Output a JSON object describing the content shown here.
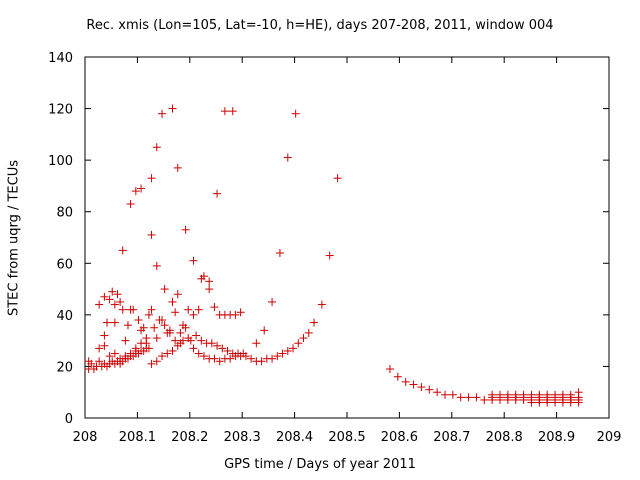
{
  "chart_data": {
    "type": "scatter",
    "title": "Rec. xmis (Lon=105, Lat=-10, h=HE), days 207-208, 2011, window 004",
    "xlabel": "GPS time / Days of year 2011",
    "ylabel": "STEC from uqrg / TECUs",
    "xlim": [
      208,
      209
    ],
    "ylim": [
      0,
      140
    ],
    "xticks": [
      "208",
      "208.1",
      "208.2",
      "208.3",
      "208.4",
      "208.5",
      "208.6",
      "208.7",
      "208.8",
      "208.9",
      "209"
    ],
    "yticks": [
      "0",
      "20",
      "40",
      "60",
      "80",
      "100",
      "120",
      "140"
    ],
    "marker": "+",
    "color": "#cc0000",
    "grid": false,
    "legend": "none",
    "points": [
      [
        208.007,
        19
      ],
      [
        208.007,
        22
      ],
      [
        208.012,
        21
      ],
      [
        208.017,
        19
      ],
      [
        208.022,
        20
      ],
      [
        208.027,
        22
      ],
      [
        208.032,
        20
      ],
      [
        208.037,
        21
      ],
      [
        208.042,
        20
      ],
      [
        208.047,
        21
      ],
      [
        208.052,
        22
      ],
      [
        208.057,
        21
      ],
      [
        208.062,
        22
      ],
      [
        208.067,
        21
      ],
      [
        208.072,
        22
      ],
      [
        208.077,
        23
      ],
      [
        208.082,
        23
      ],
      [
        208.087,
        24
      ],
      [
        208.092,
        24
      ],
      [
        208.097,
        25
      ],
      [
        208.102,
        25
      ],
      [
        208.107,
        26
      ],
      [
        208.112,
        26
      ],
      [
        208.117,
        27
      ],
      [
        208.122,
        27
      ],
      [
        208.027,
        27
      ],
      [
        208.037,
        28
      ],
      [
        208.047,
        24
      ],
      [
        208.057,
        25
      ],
      [
        208.067,
        23
      ],
      [
        208.077,
        24
      ],
      [
        208.087,
        25
      ],
      [
        208.097,
        27
      ],
      [
        208.107,
        29
      ],
      [
        208.117,
        31
      ],
      [
        208.127,
        21
      ],
      [
        208.137,
        22
      ],
      [
        208.147,
        24
      ],
      [
        208.157,
        25
      ],
      [
        208.167,
        26
      ],
      [
        208.177,
        28
      ],
      [
        208.187,
        30
      ],
      [
        208.197,
        31
      ],
      [
        208.207,
        27
      ],
      [
        208.217,
        25
      ],
      [
        208.227,
        24
      ],
      [
        208.237,
        23
      ],
      [
        208.247,
        23
      ],
      [
        208.257,
        22
      ],
      [
        208.267,
        23
      ],
      [
        208.277,
        23
      ],
      [
        208.287,
        24
      ],
      [
        208.297,
        24
      ],
      [
        208.307,
        24
      ],
      [
        208.317,
        23
      ],
      [
        208.327,
        22
      ],
      [
        208.337,
        22
      ],
      [
        208.347,
        23
      ],
      [
        208.357,
        23
      ],
      [
        208.367,
        24
      ],
      [
        208.377,
        25
      ],
      [
        208.387,
        26
      ],
      [
        208.397,
        27
      ],
      [
        208.407,
        29
      ],
      [
        208.417,
        31
      ],
      [
        208.427,
        33
      ],
      [
        208.437,
        37
      ],
      [
        208.452,
        44
      ],
      [
        208.467,
        63
      ],
      [
        208.482,
        93
      ],
      [
        208.027,
        44
      ],
      [
        208.037,
        32
      ],
      [
        208.042,
        37
      ],
      [
        208.047,
        46
      ],
      [
        208.057,
        37
      ],
      [
        208.062,
        48
      ],
      [
        208.072,
        42
      ],
      [
        208.082,
        36
      ],
      [
        208.092,
        42
      ],
      [
        208.102,
        38
      ],
      [
        208.112,
        35
      ],
      [
        208.122,
        40
      ],
      [
        208.132,
        35
      ],
      [
        208.142,
        38
      ],
      [
        208.152,
        36
      ],
      [
        208.162,
        33
      ],
      [
        208.172,
        41
      ],
      [
        208.182,
        33
      ],
      [
        208.192,
        35
      ],
      [
        208.202,
        30
      ],
      [
        208.212,
        32
      ],
      [
        208.222,
        30
      ],
      [
        208.232,
        29
      ],
      [
        208.242,
        29
      ],
      [
        208.252,
        28
      ],
      [
        208.262,
        27
      ],
      [
        208.272,
        26
      ],
      [
        208.282,
        25
      ],
      [
        208.292,
        25
      ],
      [
        208.302,
        25
      ],
      [
        208.057,
        44
      ],
      [
        208.067,
        45
      ],
      [
        208.077,
        30
      ],
      [
        208.087,
        42
      ],
      [
        208.097,
        26
      ],
      [
        208.107,
        34
      ],
      [
        208.117,
        29
      ],
      [
        208.127,
        42
      ],
      [
        208.137,
        31
      ],
      [
        208.147,
        38
      ],
      [
        208.157,
        33
      ],
      [
        208.167,
        45
      ],
      [
        208.177,
        48
      ],
      [
        208.187,
        36
      ],
      [
        208.197,
        42
      ],
      [
        208.207,
        40
      ],
      [
        208.217,
        42
      ],
      [
        208.227,
        55
      ],
      [
        208.237,
        50
      ],
      [
        208.247,
        43
      ],
      [
        208.257,
        40
      ],
      [
        208.267,
        40
      ],
      [
        208.277,
        40
      ],
      [
        208.287,
        40
      ],
      [
        208.297,
        41
      ],
      [
        208.327,
        29
      ],
      [
        208.342,
        34
      ],
      [
        208.357,
        45
      ],
      [
        208.037,
        47
      ],
      [
        208.052,
        49
      ],
      [
        208.072,
        65
      ],
      [
        208.087,
        83
      ],
      [
        208.097,
        88
      ],
      [
        208.107,
        89
      ],
      [
        208.127,
        93
      ],
      [
        208.137,
        105
      ],
      [
        208.147,
        118
      ],
      [
        208.167,
        120
      ],
      [
        208.177,
        97
      ],
      [
        208.192,
        73
      ],
      [
        208.207,
        61
      ],
      [
        208.222,
        54
      ],
      [
        208.237,
        53
      ],
      [
        208.252,
        87
      ],
      [
        208.267,
        119
      ],
      [
        208.282,
        119
      ],
      [
        208.372,
        64
      ],
      [
        208.387,
        101
      ],
      [
        208.402,
        118
      ],
      [
        208.127,
        71
      ],
      [
        208.137,
        59
      ],
      [
        208.152,
        50
      ],
      [
        208.162,
        34
      ],
      [
        208.172,
        30
      ],
      [
        208.182,
        29
      ],
      [
        208.582,
        19
      ],
      [
        208.597,
        16
      ],
      [
        208.612,
        14
      ],
      [
        208.627,
        13
      ],
      [
        208.642,
        12
      ],
      [
        208.657,
        11
      ],
      [
        208.672,
        10
      ],
      [
        208.687,
        9
      ],
      [
        208.702,
        9
      ],
      [
        208.717,
        8
      ],
      [
        208.732,
        8
      ],
      [
        208.747,
        8
      ],
      [
        208.762,
        7
      ],
      [
        208.777,
        7
      ],
      [
        208.792,
        7
      ],
      [
        208.807,
        7
      ],
      [
        208.822,
        7
      ],
      [
        208.837,
        7
      ],
      [
        208.852,
        7
      ],
      [
        208.867,
        7
      ],
      [
        208.882,
        7
      ],
      [
        208.897,
        7
      ],
      [
        208.912,
        7
      ],
      [
        208.927,
        7
      ],
      [
        208.942,
        7
      ],
      [
        208.777,
        8
      ],
      [
        208.792,
        8
      ],
      [
        208.807,
        8
      ],
      [
        208.822,
        8
      ],
      [
        208.837,
        8
      ],
      [
        208.852,
        8
      ],
      [
        208.867,
        8
      ],
      [
        208.882,
        8
      ],
      [
        208.897,
        8
      ],
      [
        208.912,
        8
      ],
      [
        208.927,
        8
      ],
      [
        208.942,
        8
      ],
      [
        208.777,
        9
      ],
      [
        208.792,
        9
      ],
      [
        208.807,
        9
      ],
      [
        208.822,
        9
      ],
      [
        208.837,
        9
      ],
      [
        208.852,
        9
      ],
      [
        208.867,
        9
      ],
      [
        208.882,
        9
      ],
      [
        208.897,
        9
      ],
      [
        208.912,
        9
      ],
      [
        208.927,
        9
      ],
      [
        208.942,
        10
      ],
      [
        208.852,
        6
      ],
      [
        208.867,
        6
      ],
      [
        208.882,
        6
      ],
      [
        208.897,
        6
      ],
      [
        208.912,
        6
      ],
      [
        208.927,
        6
      ],
      [
        208.942,
        6
      ]
    ]
  }
}
